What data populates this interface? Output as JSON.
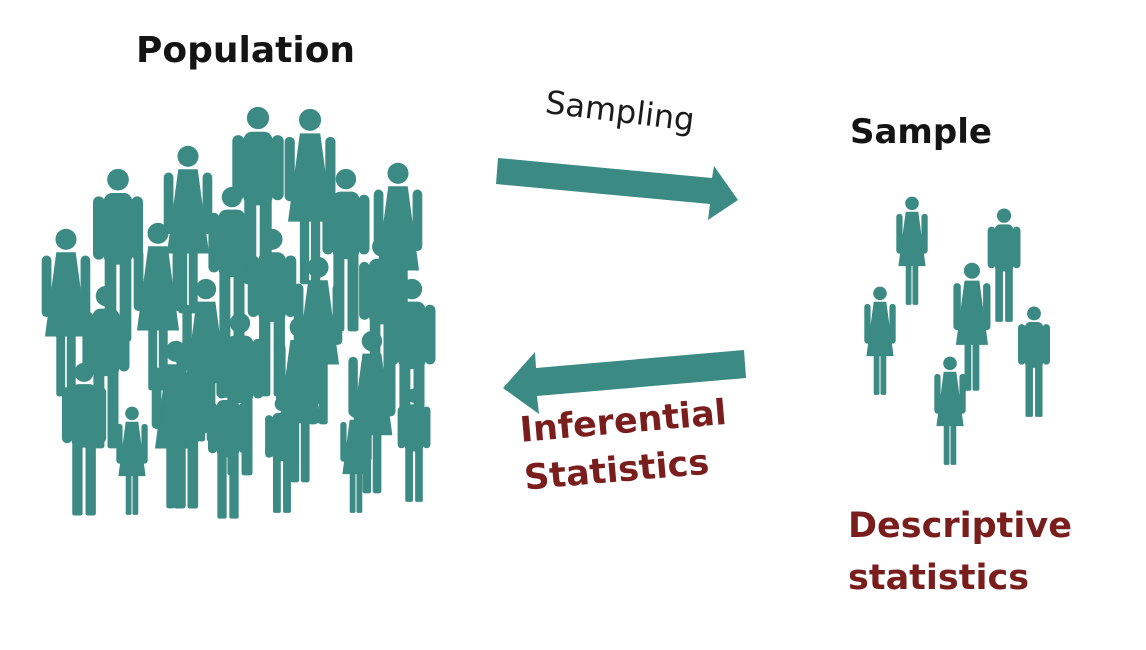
{
  "population": {
    "title": "Population"
  },
  "sample": {
    "title": "Sample"
  },
  "arrows": {
    "sampling": {
      "label": "Sampling"
    },
    "inferential": {
      "line1": "Inferential",
      "line2": "Statistics"
    }
  },
  "descriptive": {
    "line1": "Descriptive",
    "line2": "statistics"
  },
  "colors": {
    "figure": "#3b8a84",
    "arrow": "#3b8a84",
    "statistics_text": "#7a1d1d",
    "title_text": "#141414"
  },
  "icons": [
    "male-figure-icon",
    "female-figure-icon",
    "arrow-right-icon",
    "arrow-left-icon"
  ]
}
